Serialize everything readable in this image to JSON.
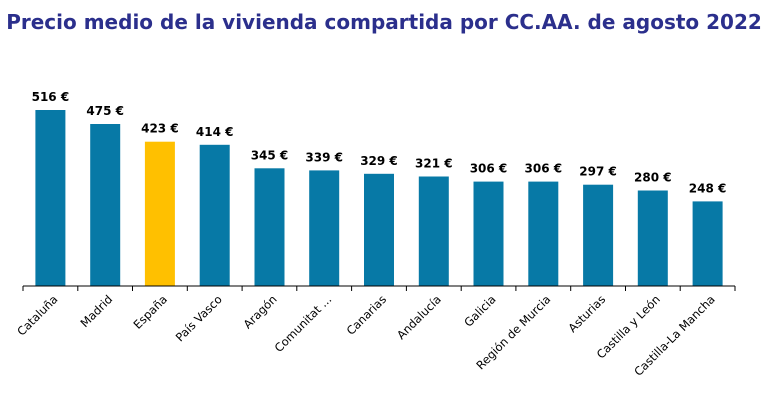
{
  "chart_data": {
    "type": "bar",
    "title": "Precio medio de la vivienda compartida por CC.AA. de agosto 2022",
    "categories": [
      "Cataluña",
      "Madrid",
      "España",
      "País Vasco",
      "Aragón",
      "Comunitat ...",
      "Canarias",
      "Andalucía",
      "Galicia",
      "Región de Murcia",
      "Asturias",
      "Castilla y León",
      "Castilla-La Mancha"
    ],
    "values": [
      516,
      475,
      423,
      414,
      345,
      339,
      329,
      321,
      306,
      306,
      297,
      280,
      248
    ],
    "value_labels": [
      "516 €",
      "475 €",
      "423 €",
      "414 €",
      "345 €",
      "339 €",
      "329 €",
      "321 €",
      "306 €",
      "306 €",
      "297 €",
      "280 €",
      "248 €"
    ],
    "xlabel": "",
    "ylabel": "",
    "ylim": [
      0,
      600
    ],
    "grid": false,
    "legend": "none",
    "colors": {
      "default": "#0779a6",
      "highlight": "#ffc000",
      "axis": "#000000"
    },
    "highlight_category": "España"
  }
}
